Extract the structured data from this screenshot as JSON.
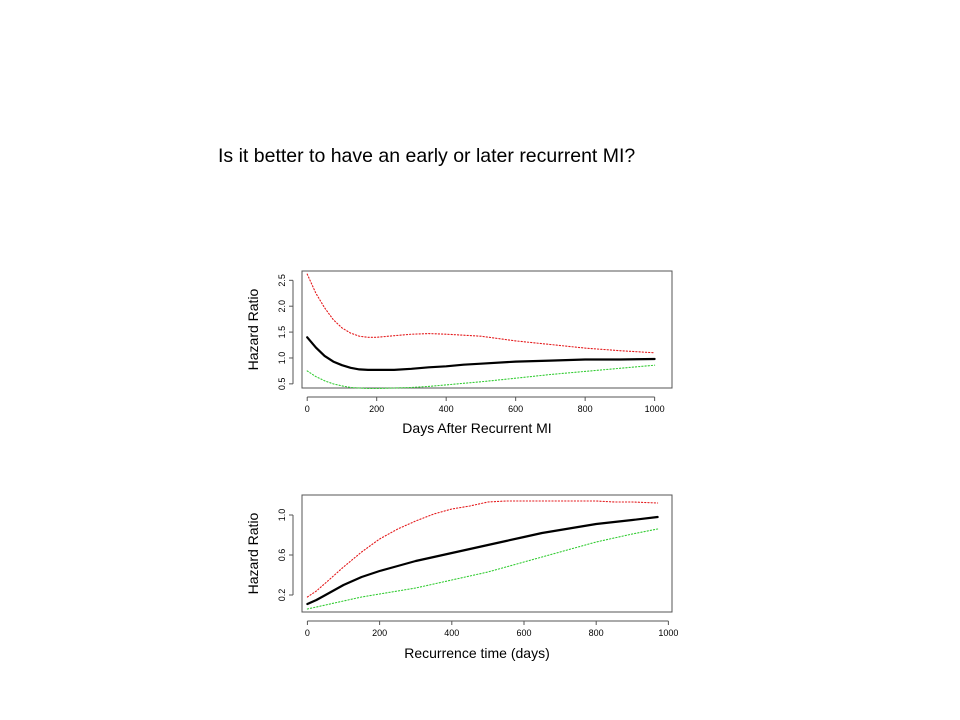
{
  "slide": {
    "title": "Is it better to have an early or later recurrent MI?"
  },
  "chart_data": [
    {
      "type": "line",
      "title": "",
      "xlabel": "Days After Recurrent MI",
      "ylabel": "Hazard Ratio",
      "xlim": [
        -15,
        1050
      ],
      "ylim": [
        0.42,
        2.68
      ],
      "xticks": [
        0,
        200,
        400,
        600,
        800,
        1000
      ],
      "yticks": [
        0.5,
        1.0,
        1.5,
        2.0,
        2.5
      ],
      "ytick_labels": [
        "0.5",
        "1.0",
        "1.5",
        "2.0",
        "2.5"
      ],
      "grid": false,
      "series": [
        {
          "role": "estimate",
          "color": "#000000",
          "style": "solid",
          "x": [
            0,
            25,
            50,
            75,
            100,
            125,
            150,
            175,
            200,
            250,
            300,
            350,
            400,
            450,
            500,
            600,
            700,
            800,
            900,
            1000
          ],
          "y": [
            1.4,
            1.2,
            1.04,
            0.93,
            0.86,
            0.81,
            0.78,
            0.77,
            0.77,
            0.77,
            0.79,
            0.82,
            0.84,
            0.87,
            0.89,
            0.93,
            0.95,
            0.97,
            0.97,
            0.98
          ]
        },
        {
          "role": "upper",
          "color": "#e41a1c",
          "style": "dotted",
          "x": [
            0,
            25,
            50,
            75,
            100,
            125,
            150,
            175,
            200,
            250,
            300,
            350,
            400,
            450,
            500,
            600,
            700,
            800,
            900,
            1000
          ],
          "y": [
            2.62,
            2.25,
            1.97,
            1.74,
            1.58,
            1.48,
            1.42,
            1.4,
            1.4,
            1.43,
            1.46,
            1.47,
            1.46,
            1.44,
            1.42,
            1.33,
            1.26,
            1.19,
            1.14,
            1.1
          ]
        },
        {
          "role": "lower",
          "color": "#33cc33",
          "style": "dotted",
          "x": [
            0,
            25,
            50,
            75,
            100,
            125,
            150,
            175,
            200,
            250,
            300,
            350,
            400,
            450,
            500,
            600,
            700,
            800,
            900,
            1000
          ],
          "y": [
            0.75,
            0.64,
            0.56,
            0.5,
            0.46,
            0.43,
            0.42,
            0.41,
            0.41,
            0.42,
            0.43,
            0.45,
            0.48,
            0.51,
            0.54,
            0.61,
            0.68,
            0.74,
            0.8,
            0.86
          ]
        }
      ]
    },
    {
      "type": "line",
      "title": "",
      "xlabel": "Recurrence time (days)",
      "ylabel": "Hazard Ratio",
      "xlim": [
        -15,
        1010
      ],
      "ylim": [
        0.03,
        1.2
      ],
      "xticks": [
        0,
        200,
        400,
        600,
        800,
        1000
      ],
      "yticks": [
        0.2,
        0.6,
        1.0
      ],
      "ytick_labels": [
        "0.2",
        "0.6",
        "1.0"
      ],
      "grid": false,
      "series": [
        {
          "role": "estimate",
          "color": "#000000",
          "style": "solid",
          "x": [
            0,
            25,
            50,
            100,
            150,
            200,
            250,
            300,
            350,
            400,
            450,
            500,
            550,
            600,
            650,
            700,
            750,
            800,
            850,
            900,
            970
          ],
          "y": [
            0.11,
            0.15,
            0.2,
            0.3,
            0.38,
            0.44,
            0.49,
            0.54,
            0.58,
            0.62,
            0.66,
            0.7,
            0.74,
            0.78,
            0.82,
            0.85,
            0.88,
            0.91,
            0.93,
            0.95,
            0.98
          ]
        },
        {
          "role": "upper",
          "color": "#e41a1c",
          "style": "dotted",
          "x": [
            0,
            25,
            50,
            100,
            150,
            200,
            250,
            300,
            350,
            400,
            450,
            500,
            550,
            600,
            650,
            700,
            750,
            800,
            850,
            900,
            970
          ],
          "y": [
            0.18,
            0.24,
            0.32,
            0.48,
            0.63,
            0.76,
            0.86,
            0.94,
            1.01,
            1.06,
            1.09,
            1.13,
            1.14,
            1.14,
            1.14,
            1.14,
            1.14,
            1.14,
            1.13,
            1.13,
            1.12
          ]
        },
        {
          "role": "lower",
          "color": "#33cc33",
          "style": "dotted",
          "x": [
            0,
            25,
            50,
            100,
            150,
            200,
            250,
            300,
            350,
            400,
            450,
            500,
            550,
            600,
            650,
            700,
            750,
            800,
            850,
            900,
            970
          ],
          "y": [
            0.06,
            0.08,
            0.1,
            0.14,
            0.18,
            0.21,
            0.24,
            0.27,
            0.31,
            0.35,
            0.39,
            0.43,
            0.48,
            0.53,
            0.58,
            0.63,
            0.68,
            0.73,
            0.77,
            0.81,
            0.86
          ]
        }
      ]
    }
  ]
}
